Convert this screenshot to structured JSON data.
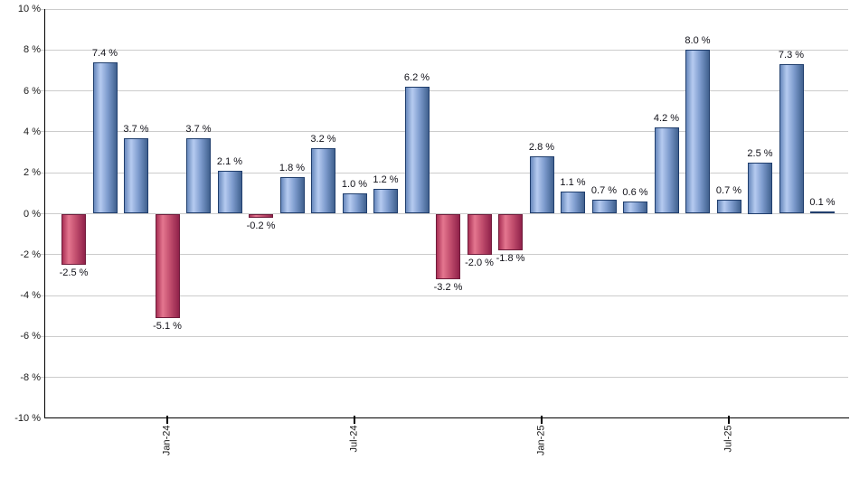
{
  "chart_data": {
    "type": "bar",
    "title": "",
    "xlabel": "",
    "ylabel": "",
    "unit": "%",
    "ylim": [
      -10,
      10
    ],
    "y_tick_step": 2,
    "y_tick_labels": [
      "10 %",
      "8 %",
      "6 %",
      "4 %",
      "2 %",
      "0 %",
      "-2 %",
      "-4 %",
      "-6 %",
      "-8 %",
      "-10 %"
    ],
    "x_tick_labels": [
      "Jan-24",
      "Jul-24",
      "Jan-25",
      "Jul-25"
    ],
    "x_tick_bar_indices": [
      3,
      9,
      15,
      21
    ],
    "values": [
      -2.5,
      7.4,
      3.7,
      -5.1,
      3.7,
      2.1,
      -0.2,
      1.8,
      3.2,
      1.0,
      1.2,
      6.2,
      -3.2,
      -2.0,
      -1.8,
      2.8,
      1.1,
      0.7,
      0.6,
      4.2,
      8.0,
      0.7,
      2.5,
      7.3,
      0.1
    ],
    "data_labels": [
      "-2.5 %",
      "7.4 %",
      "3.7 %",
      "-5.1 %",
      "3.7 %",
      "2.1 %",
      "-0.2 %",
      "1.8 %",
      "3.2 %",
      "1.0 %",
      "1.2 %",
      "6.2 %",
      "-3.2 %",
      "-2.0 %",
      "-1.8 %",
      "2.8 %",
      "1.1 %",
      "0.7 %",
      "0.6 %",
      "4.2 %",
      "8.0 %",
      "0.7 %",
      "2.5 %",
      "7.3 %",
      "0.1 %"
    ],
    "grid": true,
    "legend": false,
    "colors": {
      "positive_gradient": [
        "#6889bd",
        "#b6cbf0",
        "#7e9cce",
        "#41618f"
      ],
      "negative_gradient": [
        "#a93055",
        "#e4768f",
        "#c24e6e",
        "#90224a"
      ],
      "positive_border": "#203e6d",
      "negative_border": "#701d3c",
      "gridline": "#cccccc",
      "axis": "#000000",
      "text": "#1a1a1a"
    }
  }
}
